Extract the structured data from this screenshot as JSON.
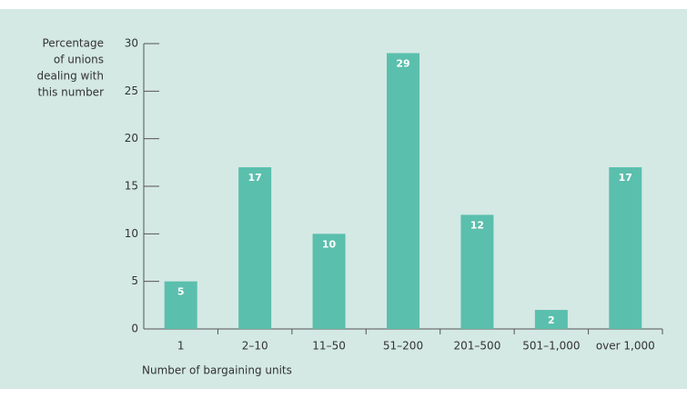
{
  "chart_data": {
    "type": "bar",
    "ylabel": [
      "Percentage",
      "of unions",
      "dealing with",
      "this number"
    ],
    "xlabel": "Number of bargaining units",
    "categories": [
      "1",
      "2–10",
      "11–50",
      "51–200",
      "201–500",
      "501–1,000",
      "over 1,000"
    ],
    "values": [
      5,
      17,
      10,
      29,
      12,
      2,
      17
    ],
    "color": "#5bbfad",
    "ylim": [
      0,
      30
    ],
    "yticks": [
      0,
      5,
      10,
      15,
      20,
      25,
      30
    ]
  }
}
